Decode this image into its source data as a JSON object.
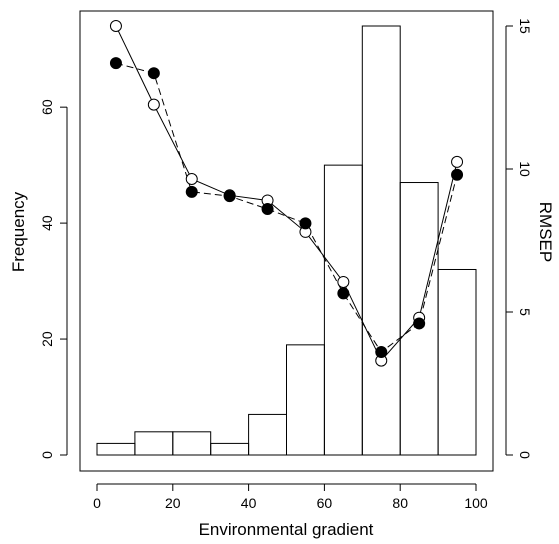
{
  "chart_data": {
    "type": "bar+line",
    "title": "",
    "xlabel": "Environmental gradient",
    "ylabel": "Frequency",
    "ylabel_right": "RMSEP",
    "xlim": [
      0,
      100
    ],
    "ylim": [
      0,
      74
    ],
    "ylim_right": [
      0,
      15
    ],
    "x_ticks": [
      "0",
      "20",
      "40",
      "60",
      "80",
      "100"
    ],
    "y_ticks": [
      "0",
      "20",
      "40",
      "60"
    ],
    "y_ticks_right": [
      "0",
      "5",
      "10",
      "15"
    ],
    "grid": false,
    "histogram": {
      "bin_edges": [
        0,
        10,
        20,
        30,
        40,
        50,
        60,
        70,
        80,
        90,
        100
      ],
      "values": [
        2,
        4,
        4,
        2,
        7,
        19,
        50,
        74,
        47,
        32
      ]
    },
    "series": [
      {
        "marker": "open-circle",
        "line": "solid",
        "x": [
          5,
          15,
          25,
          35,
          45,
          55,
          65,
          75,
          85,
          95
        ],
        "values": [
          15.0,
          12.25,
          9.65,
          9.08,
          8.9,
          7.8,
          6.05,
          3.3,
          4.8,
          10.25
        ]
      },
      {
        "marker": "filled-circle",
        "line": "dashed",
        "x": [
          5,
          15,
          25,
          35,
          45,
          55,
          65,
          75,
          85,
          95
        ],
        "values": [
          13.7,
          13.35,
          9.2,
          9.05,
          8.6,
          8.1,
          5.65,
          3.6,
          4.6,
          9.8
        ]
      }
    ]
  }
}
